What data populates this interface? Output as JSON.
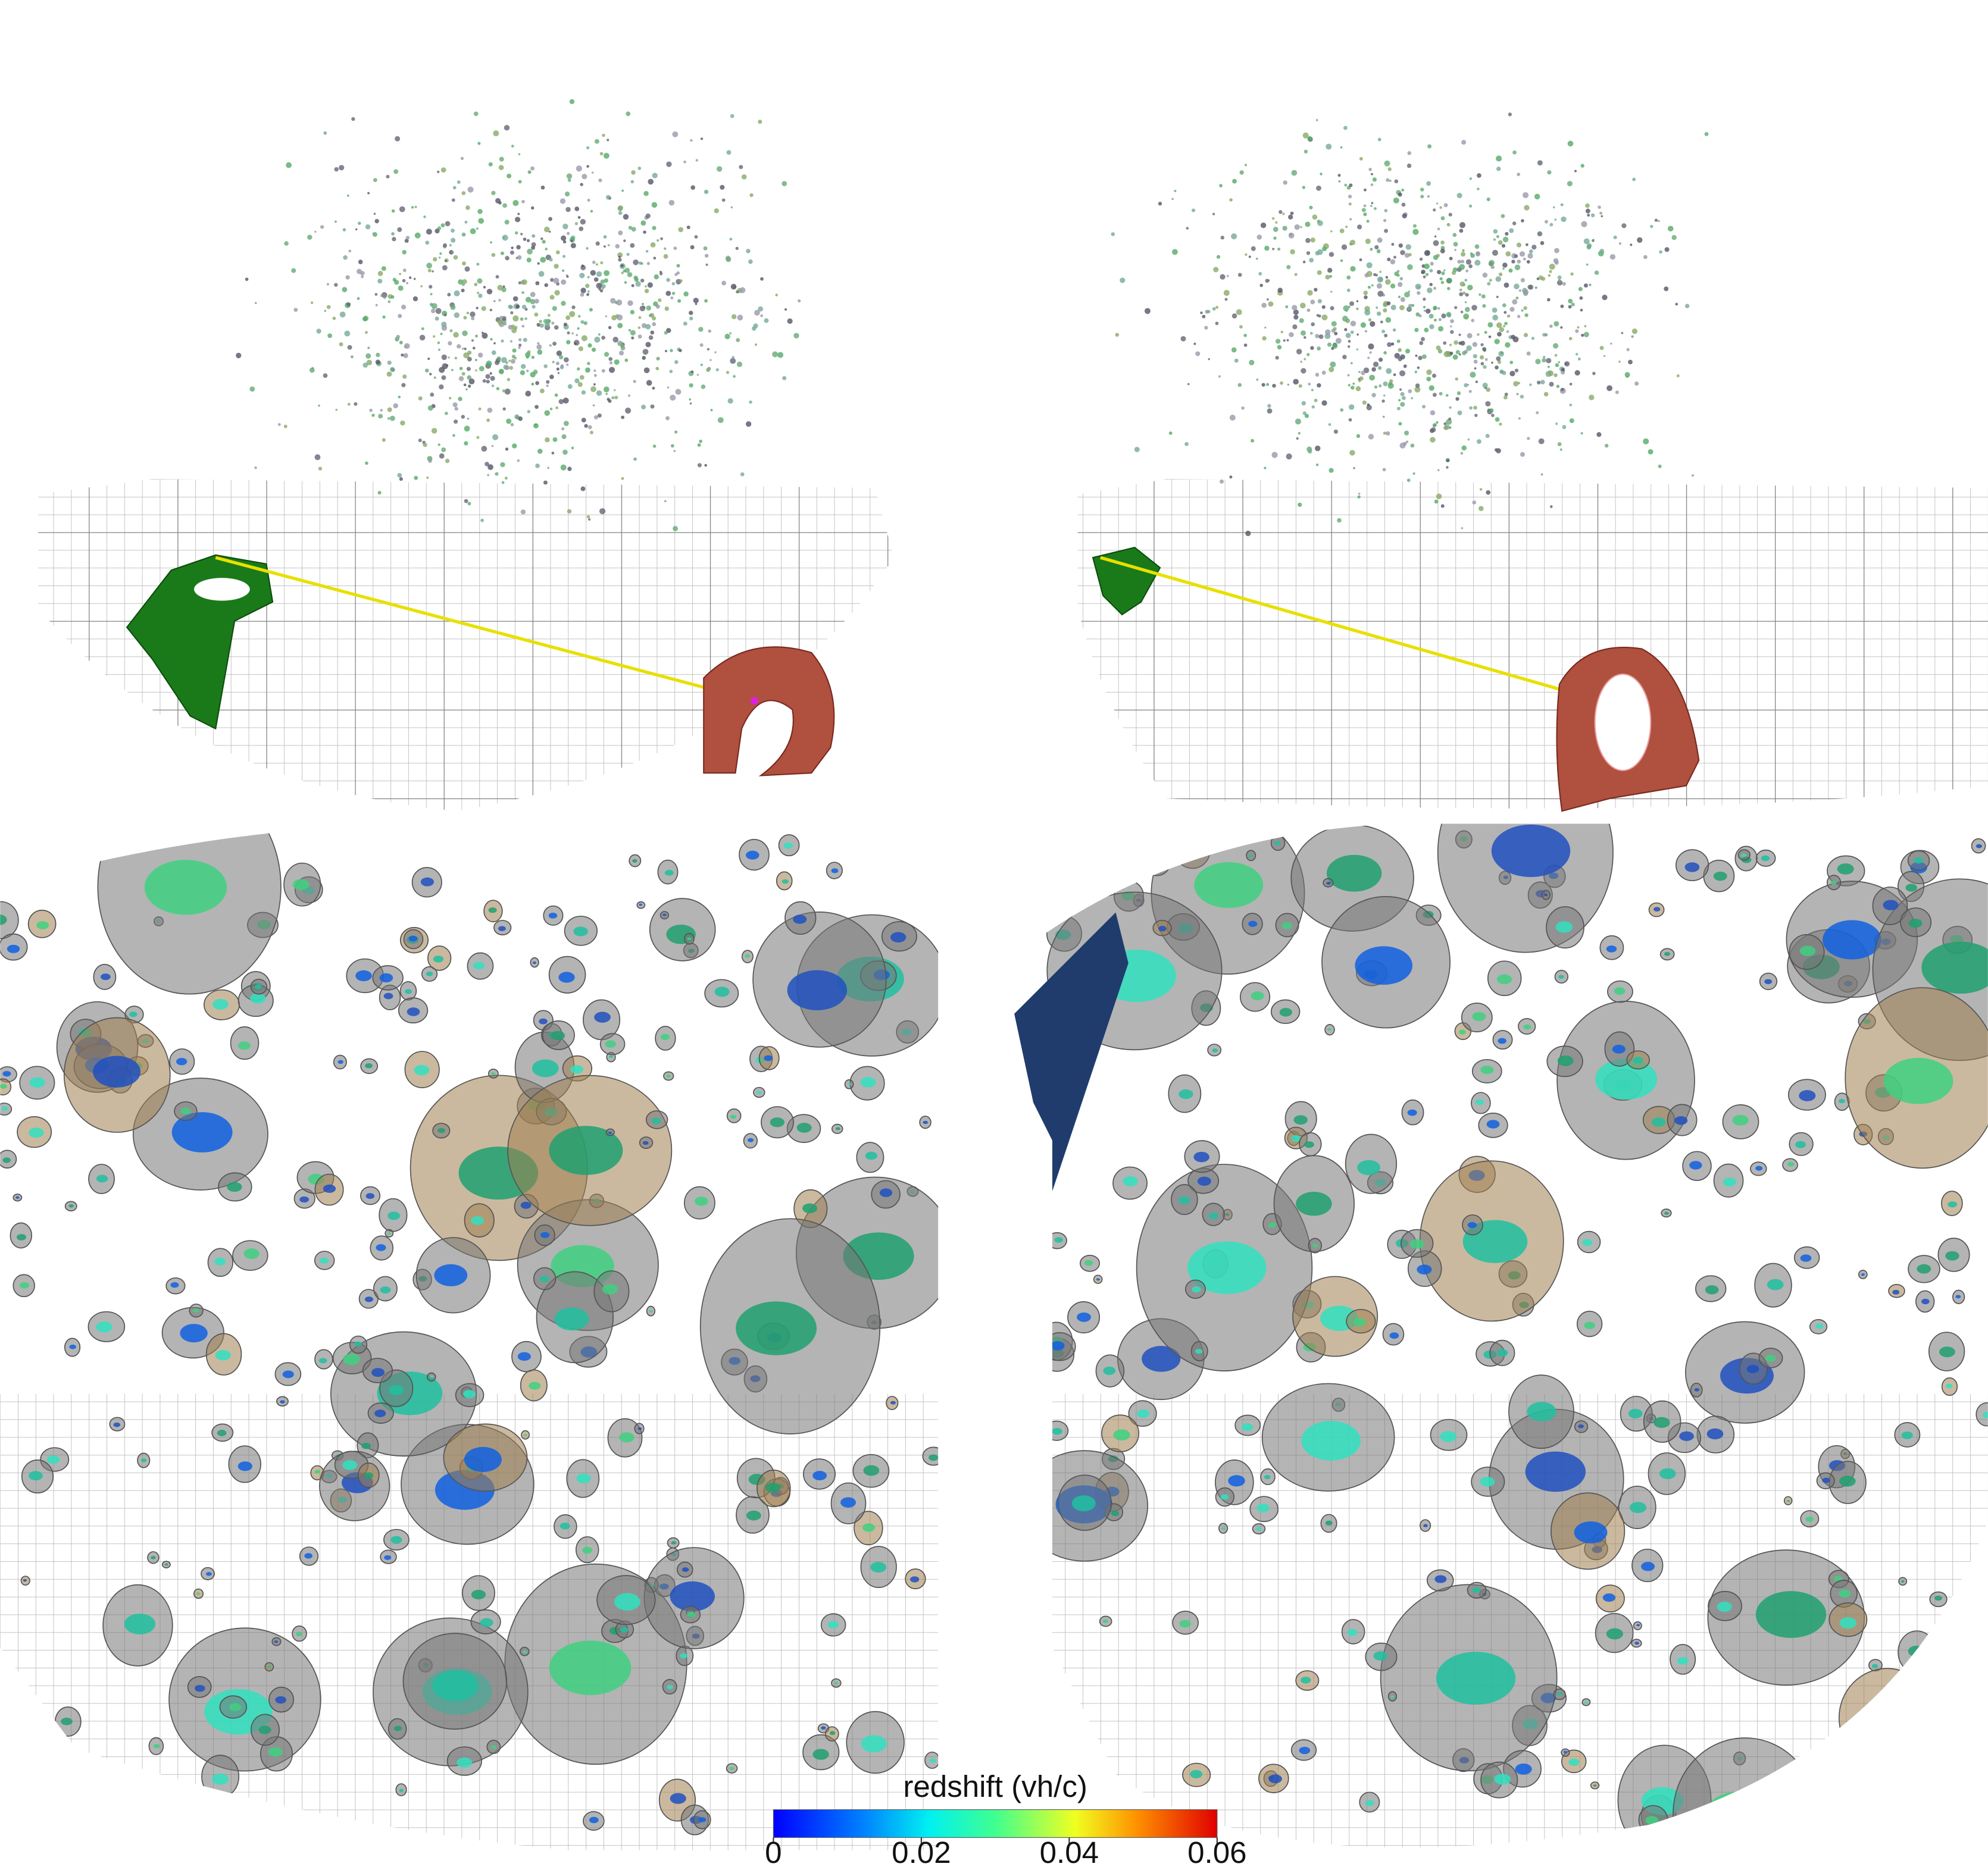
{
  "colorbar": {
    "label": "redshift (vh/c)",
    "lim": [
      0,
      0.06
    ],
    "ticks": [
      0,
      0.02,
      0.04,
      0.06
    ]
  }
}
